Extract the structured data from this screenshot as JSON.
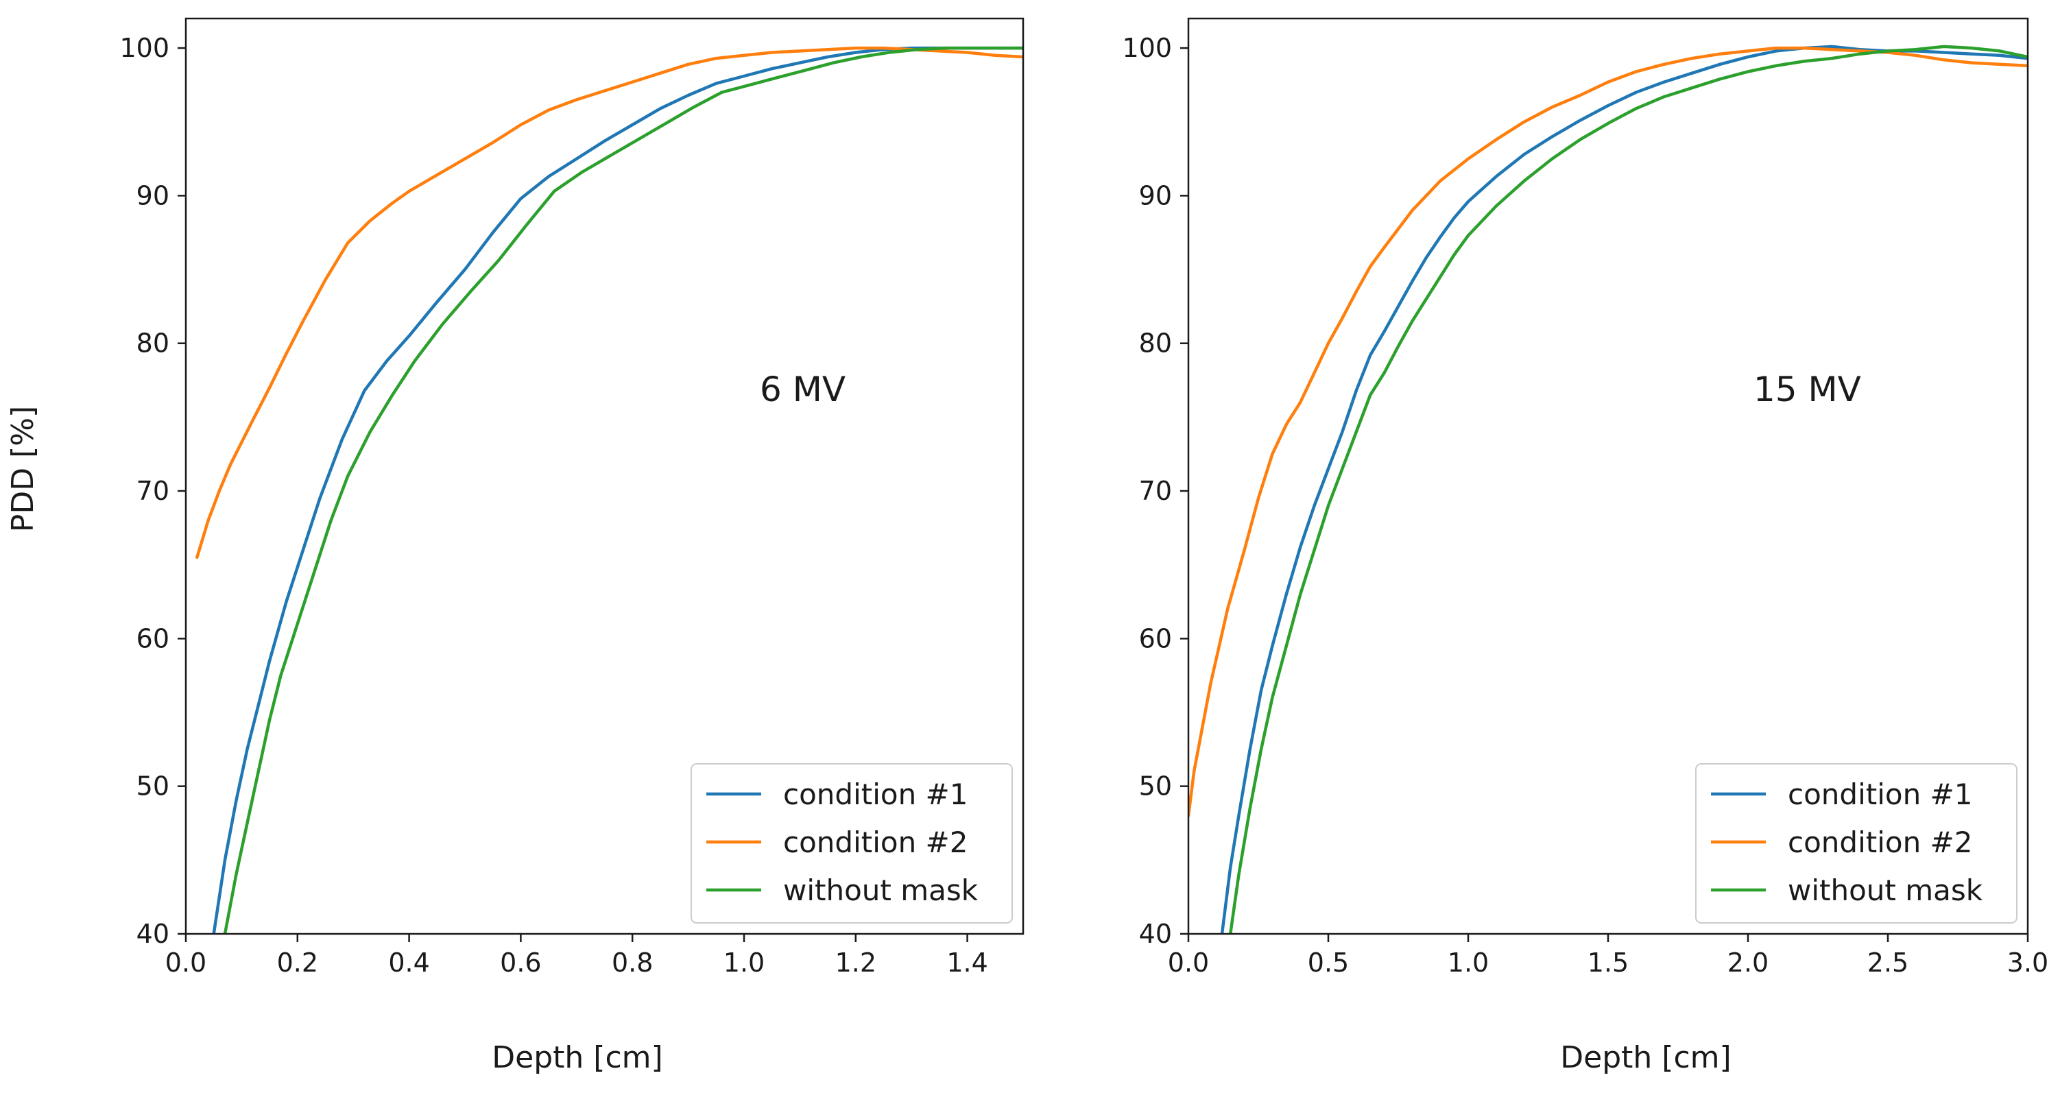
{
  "figure": {
    "ylabel": "PDD [%]"
  },
  "colors": {
    "condition_1": "#1f77b4",
    "condition_2": "#ff7f0e",
    "without_mask": "#2ca02c",
    "axis": "#1a1a1a"
  },
  "chart_data": [
    {
      "type": "line",
      "title": "",
      "annotation": "6 MV",
      "xlabel": "Depth [cm]",
      "ylabel": "PDD [%]",
      "xlim": [
        0,
        1.5
      ],
      "ylim": [
        40,
        102
      ],
      "xticks": [
        0.0,
        0.2,
        0.4,
        0.6,
        0.8,
        1.0,
        1.2,
        1.4
      ],
      "xtick_labels": [
        "0.0",
        "0.2",
        "0.4",
        "0.6",
        "0.8",
        "1.0",
        "1.2",
        "1.4"
      ],
      "yticks": [
        40,
        50,
        60,
        70,
        80,
        90,
        100
      ],
      "ytick_labels": [
        "40",
        "50",
        "60",
        "70",
        "80",
        "90",
        "100"
      ],
      "grid": false,
      "legend": "bottom-right",
      "series": [
        {
          "name": "condition #1",
          "color_key": "condition_1",
          "x": [
            0.05,
            0.07,
            0.09,
            0.11,
            0.13,
            0.15,
            0.18,
            0.21,
            0.24,
            0.28,
            0.32,
            0.36,
            0.4,
            0.45,
            0.5,
            0.55,
            0.6,
            0.65,
            0.7,
            0.75,
            0.8,
            0.85,
            0.9,
            0.95,
            1.0,
            1.05,
            1.1,
            1.15,
            1.2,
            1.25,
            1.3,
            1.35,
            1.4,
            1.45,
            1.5
          ],
          "y": [
            40.0,
            45.0,
            49.0,
            52.5,
            55.5,
            58.5,
            62.5,
            66.0,
            69.5,
            73.5,
            76.8,
            78.8,
            80.5,
            82.8,
            85.0,
            87.5,
            89.8,
            91.3,
            92.5,
            93.7,
            94.8,
            95.9,
            96.8,
            97.6,
            98.1,
            98.6,
            99.0,
            99.4,
            99.7,
            99.9,
            100.0,
            100.0,
            100.0,
            100.0,
            100.0
          ]
        },
        {
          "name": "condition #2",
          "color_key": "condition_2",
          "x": [
            0.02,
            0.04,
            0.06,
            0.08,
            0.1,
            0.12,
            0.15,
            0.18,
            0.21,
            0.25,
            0.29,
            0.33,
            0.37,
            0.4,
            0.45,
            0.5,
            0.55,
            0.6,
            0.65,
            0.7,
            0.75,
            0.8,
            0.85,
            0.9,
            0.95,
            1.0,
            1.05,
            1.1,
            1.15,
            1.2,
            1.25,
            1.3,
            1.35,
            1.4,
            1.45,
            1.5
          ],
          "y": [
            65.5,
            68.0,
            70.0,
            71.8,
            73.3,
            74.8,
            77.0,
            79.3,
            81.5,
            84.3,
            86.8,
            88.3,
            89.5,
            90.3,
            91.4,
            92.5,
            93.6,
            94.8,
            95.8,
            96.5,
            97.1,
            97.7,
            98.3,
            98.9,
            99.3,
            99.5,
            99.7,
            99.8,
            99.9,
            100.0,
            100.0,
            99.9,
            99.8,
            99.7,
            99.5,
            99.4
          ]
        },
        {
          "name": "without mask",
          "color_key": "without_mask",
          "x": [
            0.07,
            0.09,
            0.11,
            0.13,
            0.15,
            0.17,
            0.2,
            0.23,
            0.26,
            0.29,
            0.33,
            0.37,
            0.41,
            0.46,
            0.51,
            0.56,
            0.61,
            0.66,
            0.71,
            0.76,
            0.81,
            0.86,
            0.91,
            0.96,
            1.01,
            1.06,
            1.11,
            1.16,
            1.21,
            1.26,
            1.31,
            1.36,
            1.41,
            1.46,
            1.5
          ],
          "y": [
            40.0,
            44.0,
            47.5,
            51.0,
            54.5,
            57.5,
            61.0,
            64.5,
            68.0,
            71.0,
            74.0,
            76.5,
            78.8,
            81.3,
            83.5,
            85.6,
            88.0,
            90.3,
            91.6,
            92.7,
            93.8,
            94.9,
            96.0,
            97.0,
            97.5,
            98.0,
            98.5,
            99.0,
            99.4,
            99.7,
            99.9,
            100.0,
            100.0,
            100.0,
            100.0
          ]
        }
      ]
    },
    {
      "type": "line",
      "title": "",
      "annotation": "15 MV",
      "xlabel": "Depth [cm]",
      "ylabel": "",
      "xlim": [
        0,
        3.0
      ],
      "ylim": [
        40,
        102
      ],
      "xticks": [
        0.0,
        0.5,
        1.0,
        1.5,
        2.0,
        2.5,
        3.0
      ],
      "xtick_labels": [
        "0.0",
        "0.5",
        "1.0",
        "1.5",
        "2.0",
        "2.5",
        "3.0"
      ],
      "yticks": [
        40,
        50,
        60,
        70,
        80,
        90,
        100
      ],
      "ytick_labels": [
        "40",
        "50",
        "60",
        "70",
        "80",
        "90",
        "100"
      ],
      "grid": false,
      "legend": "bottom-right",
      "series": [
        {
          "name": "condition #1",
          "color_key": "condition_1",
          "x": [
            0.12,
            0.15,
            0.18,
            0.22,
            0.26,
            0.3,
            0.35,
            0.4,
            0.45,
            0.5,
            0.55,
            0.6,
            0.65,
            0.7,
            0.75,
            0.8,
            0.85,
            0.9,
            0.95,
            1.0,
            1.1,
            1.2,
            1.3,
            1.4,
            1.5,
            1.6,
            1.7,
            1.8,
            1.9,
            2.0,
            2.1,
            2.2,
            2.3,
            2.4,
            2.5,
            2.6,
            2.7,
            2.8,
            2.9,
            3.0
          ],
          "y": [
            40.0,
            44.5,
            48.0,
            52.5,
            56.5,
            59.5,
            63.0,
            66.2,
            69.0,
            71.5,
            74.0,
            76.8,
            79.2,
            80.8,
            82.5,
            84.2,
            85.8,
            87.2,
            88.5,
            89.6,
            91.3,
            92.8,
            94.0,
            95.1,
            96.1,
            97.0,
            97.7,
            98.3,
            98.9,
            99.4,
            99.8,
            100.0,
            100.1,
            99.9,
            99.8,
            99.8,
            99.7,
            99.6,
            99.5,
            99.3
          ]
        },
        {
          "name": "condition #2",
          "color_key": "condition_2",
          "x": [
            0.0,
            0.02,
            0.05,
            0.08,
            0.11,
            0.14,
            0.17,
            0.2,
            0.25,
            0.3,
            0.35,
            0.4,
            0.45,
            0.5,
            0.55,
            0.6,
            0.65,
            0.7,
            0.8,
            0.9,
            1.0,
            1.1,
            1.2,
            1.3,
            1.4,
            1.5,
            1.6,
            1.7,
            1.8,
            1.9,
            2.0,
            2.1,
            2.2,
            2.3,
            2.4,
            2.5,
            2.6,
            2.7,
            2.8,
            2.9,
            3.0
          ],
          "y": [
            48.0,
            51.0,
            54.0,
            57.0,
            59.5,
            62.0,
            64.0,
            66.0,
            69.5,
            72.5,
            74.5,
            76.0,
            78.0,
            80.0,
            81.7,
            83.5,
            85.2,
            86.5,
            89.0,
            91.0,
            92.5,
            93.8,
            95.0,
            96.0,
            96.8,
            97.7,
            98.4,
            98.9,
            99.3,
            99.6,
            99.8,
            100.0,
            100.0,
            99.9,
            99.8,
            99.7,
            99.5,
            99.2,
            99.0,
            98.9,
            98.8
          ]
        },
        {
          "name": "without mask",
          "color_key": "without_mask",
          "x": [
            0.15,
            0.18,
            0.22,
            0.26,
            0.3,
            0.35,
            0.4,
            0.45,
            0.5,
            0.55,
            0.6,
            0.65,
            0.7,
            0.75,
            0.8,
            0.85,
            0.9,
            0.95,
            1.0,
            1.1,
            1.2,
            1.3,
            1.4,
            1.5,
            1.6,
            1.7,
            1.8,
            1.9,
            2.0,
            2.1,
            2.2,
            2.3,
            2.4,
            2.5,
            2.6,
            2.7,
            2.8,
            2.9,
            3.0
          ],
          "y": [
            40.0,
            44.0,
            48.5,
            52.5,
            56.0,
            59.5,
            63.0,
            66.0,
            69.0,
            71.5,
            74.0,
            76.5,
            78.0,
            79.8,
            81.5,
            83.0,
            84.5,
            86.0,
            87.3,
            89.3,
            91.0,
            92.5,
            93.8,
            94.9,
            95.9,
            96.7,
            97.3,
            97.9,
            98.4,
            98.8,
            99.1,
            99.3,
            99.6,
            99.8,
            99.9,
            100.1,
            100.0,
            99.8,
            99.4
          ]
        }
      ]
    }
  ]
}
